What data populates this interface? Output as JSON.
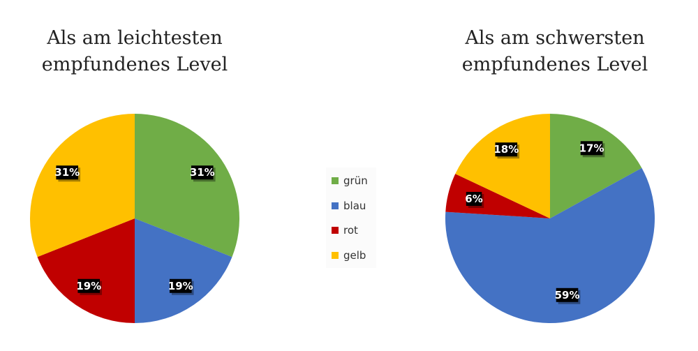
{
  "legend": {
    "items": [
      {
        "label": "grün",
        "color": "#70ad47"
      },
      {
        "label": "blau",
        "color": "#4472c4"
      },
      {
        "label": "rot",
        "color": "#c00000"
      },
      {
        "label": "gelb",
        "color": "#ffc000"
      }
    ]
  },
  "chart_data": [
    {
      "type": "pie",
      "title_lines": [
        "Als am leichtesten",
        "empfundenes Level"
      ],
      "categories": [
        "grün",
        "blau",
        "rot",
        "gelb"
      ],
      "values": [
        31,
        19,
        19,
        31
      ],
      "labels": [
        "31%",
        "19%",
        "19%",
        "31%"
      ],
      "colors": [
        "#70ad47",
        "#4472c4",
        "#c00000",
        "#ffc000"
      ],
      "legend_position": "center"
    },
    {
      "type": "pie",
      "title_lines": [
        "Als am schwersten",
        "empfundenes Level"
      ],
      "categories": [
        "grün",
        "blau",
        "rot",
        "gelb"
      ],
      "values": [
        17,
        59,
        6,
        18
      ],
      "labels": [
        "17%",
        "59%",
        "6%",
        "18%"
      ],
      "colors": [
        "#70ad47",
        "#4472c4",
        "#c00000",
        "#ffc000"
      ],
      "legend_position": "center"
    }
  ]
}
